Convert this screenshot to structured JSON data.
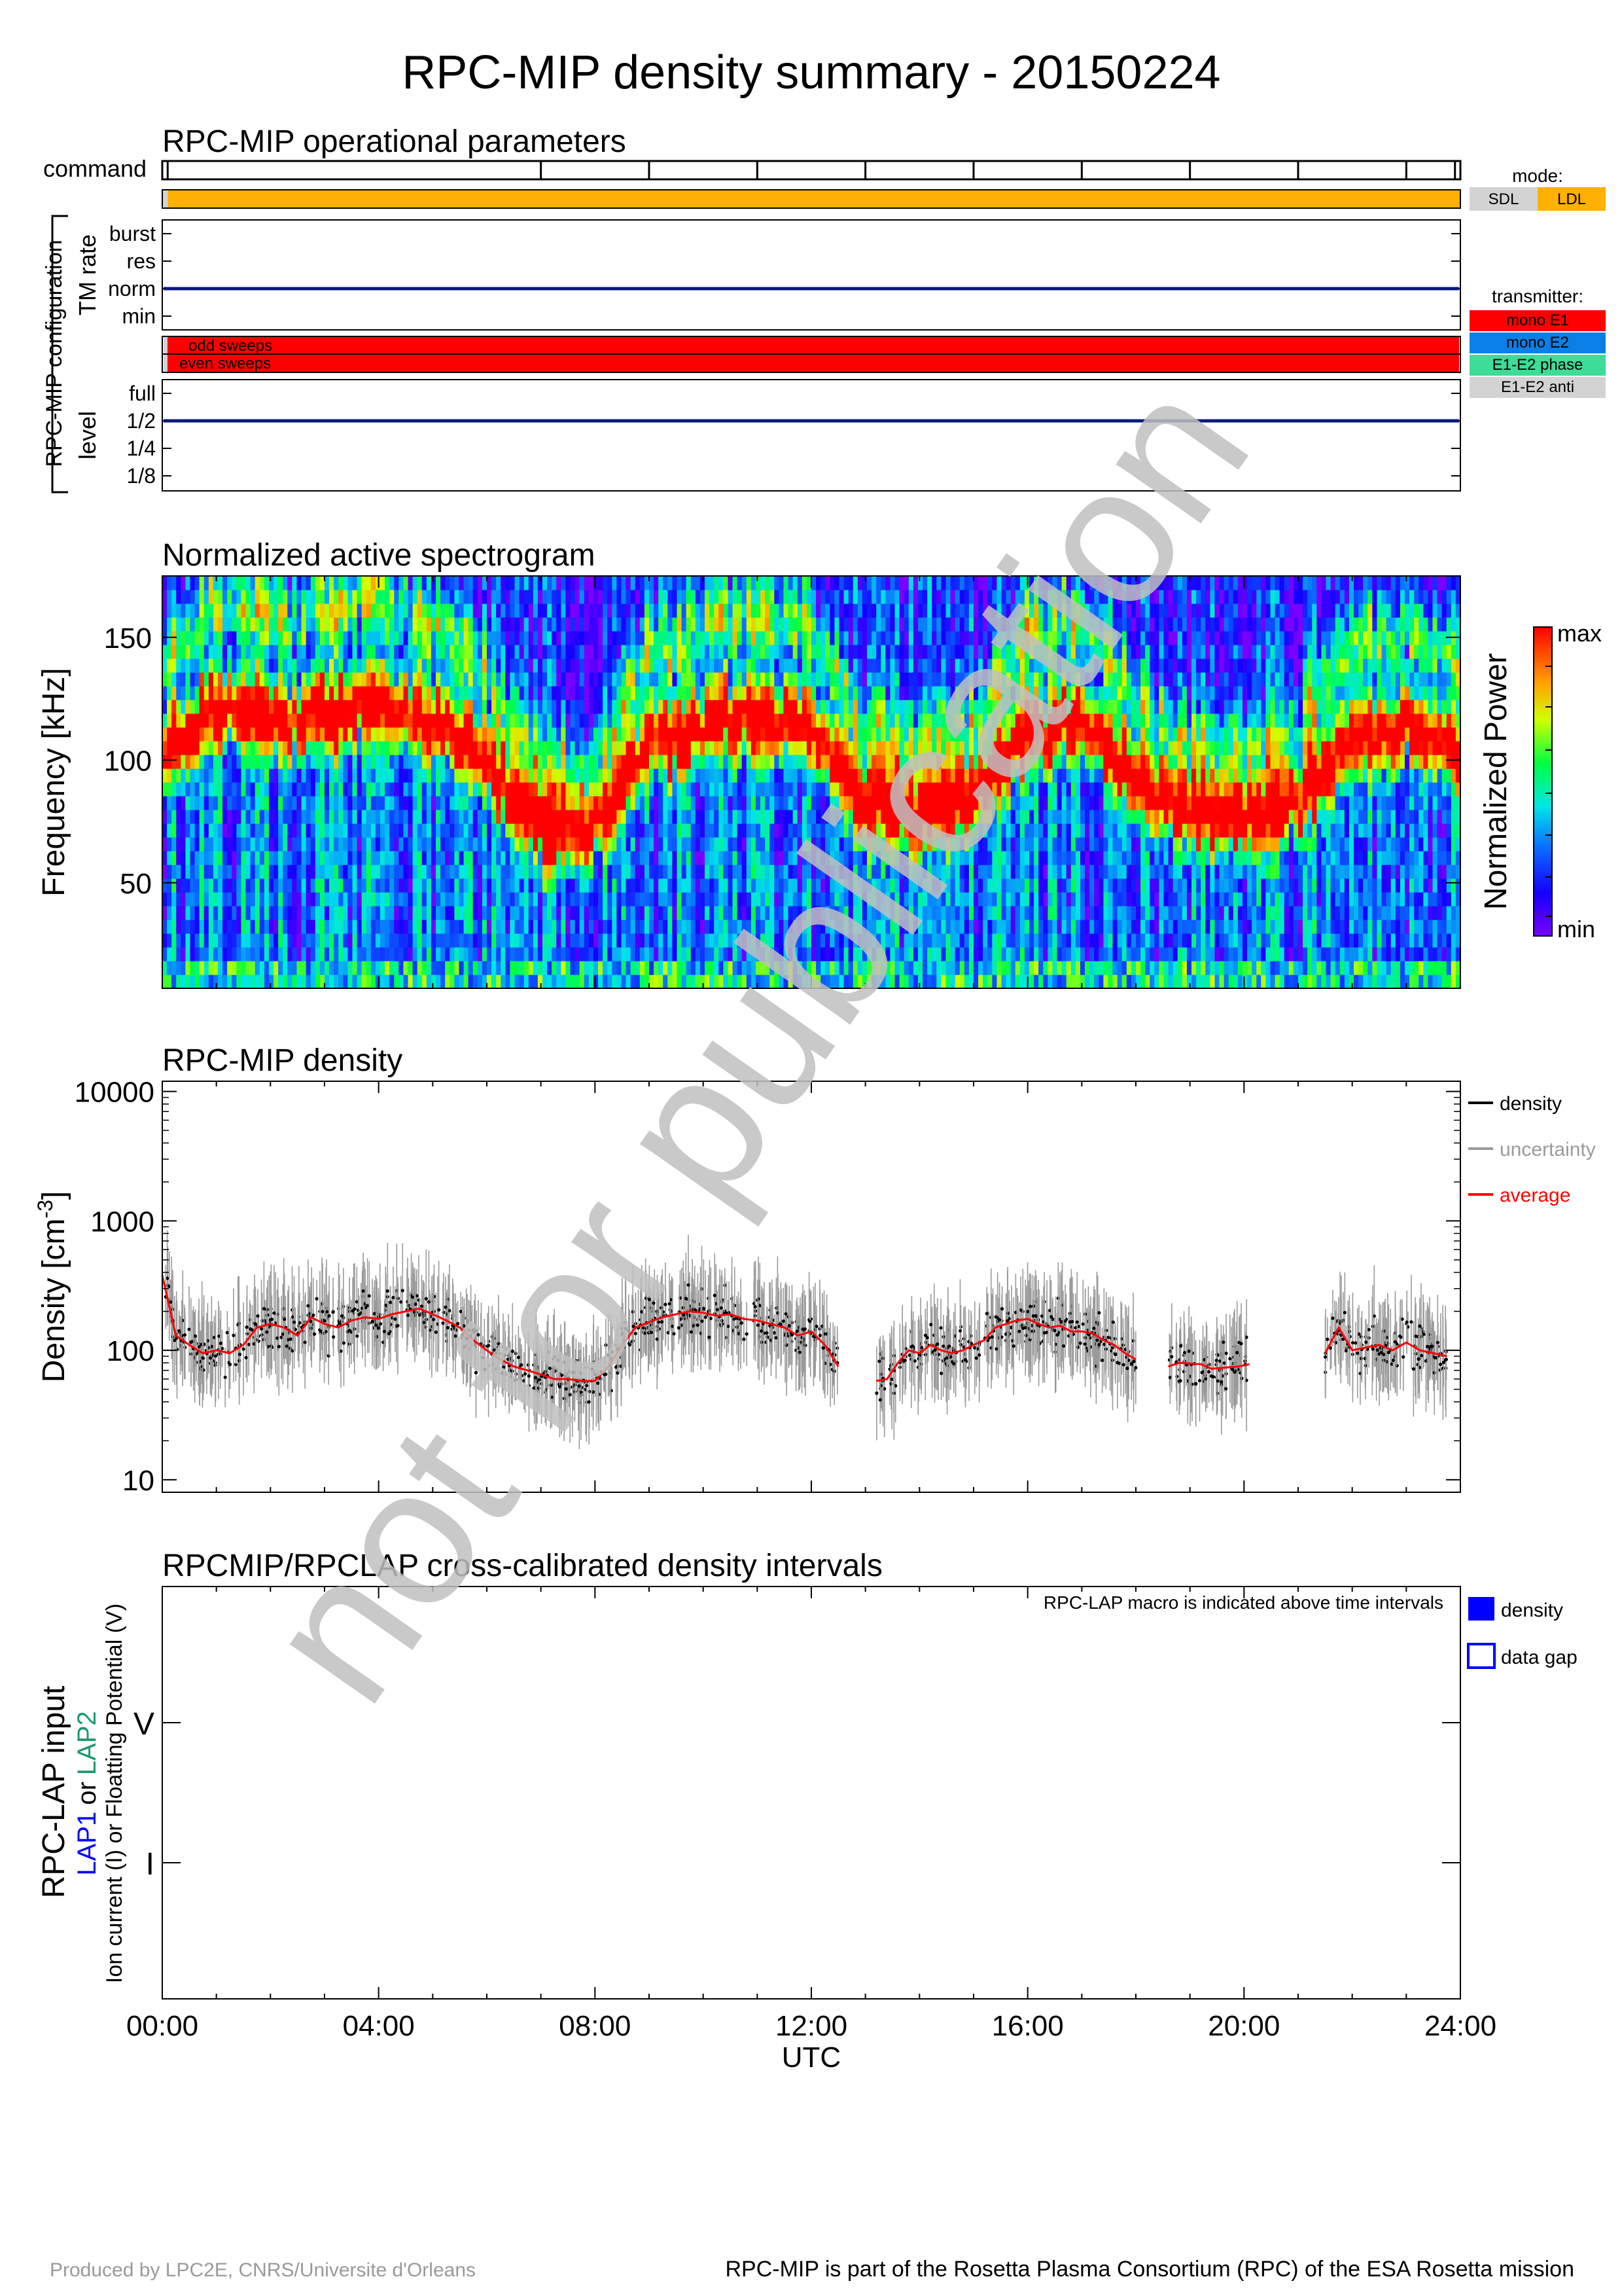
{
  "title": "RPC-MIP density summary - 20150224",
  "watermark": "not for publication",
  "footer": {
    "left": "Produced by LPC2E, CNRS/Universite d'Orleans",
    "right": "RPC-MIP is part of the Rosetta Plasma Consortium (RPC) of the ESA Rosetta mission"
  },
  "chart_data": [
    {
      "type": "timeline",
      "title": "RPC-MIP operational parameters",
      "command_label": "command",
      "command_ticks_hours": [
        0,
        0.1,
        7,
        9,
        11,
        13,
        15,
        17,
        19,
        21,
        23,
        23.9
      ],
      "group_label": "RPC-MIP configuration",
      "mode_legend": {
        "title": "mode:",
        "items": [
          {
            "name": "SDL",
            "color": "#d3d3d3"
          },
          {
            "name": "LDL",
            "color": "#ffb000"
          }
        ]
      },
      "mode_segments": [
        {
          "start": 0,
          "end": 0.1,
          "mode": "SDL"
        },
        {
          "start": 0.1,
          "end": 24,
          "mode": "LDL"
        }
      ],
      "tm_rate": {
        "ylabel": "TM rate",
        "levels": [
          "burst",
          "res",
          "norm",
          "min"
        ],
        "value": "norm"
      },
      "sweeps": {
        "labels": [
          "odd sweeps",
          "even sweeps"
        ],
        "transmitter": "mono E1"
      },
      "transmitter_legend": {
        "title": "transmitter:",
        "items": [
          {
            "name": "mono E1",
            "color": "#ff0000"
          },
          {
            "name": "mono E2",
            "color": "#0a7fe6"
          },
          {
            "name": "E1-E2 phase",
            "color": "#3ddc97"
          },
          {
            "name": "E1-E2 anti",
            "color": "#d3d3d3"
          }
        ]
      },
      "level": {
        "ylabel": "level",
        "levels": [
          "full",
          "1/2",
          "1/4",
          "1/8"
        ],
        "value": "1/2"
      }
    },
    {
      "type": "heatmap",
      "title": "Normalized active spectrogram",
      "ylabel": "Frequency [kHz]",
      "ylim": [
        7,
        175
      ],
      "yticks": [
        50,
        100,
        150
      ],
      "xlim": [
        0,
        24
      ],
      "colorbar": {
        "label": "Normalized Power",
        "max_label": "max",
        "min_label": "min"
      },
      "peak_frequency_profile": {
        "hours": [
          0,
          1,
          2,
          3,
          4,
          5,
          6,
          7,
          8,
          9,
          10,
          11,
          12,
          13,
          14,
          15,
          16,
          17,
          18,
          19,
          20,
          21,
          22,
          23,
          24
        ],
        "khz": [
          100,
          122,
          118,
          120,
          122,
          115,
          98,
          72,
          70,
          108,
          115,
          118,
          112,
          80,
          78,
          85,
          112,
          115,
          92,
          78,
          76,
          82,
          110,
          112,
          100
        ]
      }
    },
    {
      "type": "line",
      "title": "RPC-MIP density",
      "ylabel": "Density [cm",
      "ylabel_sup": "-3",
      "ylabel_end": "]",
      "yscale": "log",
      "ylim": [
        8,
        12000
      ],
      "yticks": [
        10,
        100,
        1000,
        10000
      ],
      "ytick_labels": [
        "10",
        "100",
        "1000",
        "10000"
      ],
      "xlim": [
        0,
        24
      ],
      "legend": [
        {
          "name": "density",
          "color": "#000000"
        },
        {
          "name": "uncertainty",
          "color": "#9a9a9a"
        },
        {
          "name": "average",
          "color": "#ff0000"
        }
      ],
      "series": [
        {
          "name": "average",
          "x": [
            0.0,
            0.25,
            0.5,
            0.75,
            1.0,
            1.25,
            1.5,
            1.75,
            2.0,
            2.25,
            2.5,
            2.75,
            3.0,
            3.25,
            3.5,
            3.75,
            4.0,
            4.25,
            4.5,
            4.75,
            5.0,
            5.25,
            5.5,
            5.75,
            6.0,
            6.25,
            6.5,
            6.75,
            7.0,
            7.25,
            7.5,
            7.75,
            8.0,
            8.25,
            8.5,
            8.75,
            9.0,
            9.25,
            9.5,
            9.75,
            10.0,
            10.25,
            10.5,
            10.75,
            11.0,
            11.25,
            11.5,
            11.75,
            12.0,
            12.25,
            12.5
          ],
          "y": [
            380,
            130,
            110,
            95,
            100,
            95,
            110,
            150,
            160,
            150,
            130,
            180,
            160,
            150,
            170,
            180,
            175,
            190,
            200,
            210,
            190,
            170,
            150,
            120,
            100,
            85,
            75,
            70,
            65,
            60,
            60,
            58,
            58,
            75,
            110,
            150,
            165,
            180,
            190,
            200,
            195,
            185,
            190,
            175,
            170,
            160,
            150,
            130,
            140,
            110,
            75
          ]
        },
        {
          "name": "average",
          "x": [
            13.2,
            13.4,
            13.6,
            13.8,
            14.0,
            14.2,
            14.4,
            14.6,
            14.8,
            15.0,
            15.2,
            15.4,
            15.6,
            15.8,
            16.0,
            16.2,
            16.4,
            16.6,
            16.8,
            17.0,
            17.2,
            17.4,
            17.6,
            17.8,
            18.0
          ],
          "y": [
            58,
            60,
            80,
            100,
            95,
            110,
            100,
            95,
            100,
            110,
            120,
            150,
            160,
            170,
            175,
            160,
            150,
            155,
            140,
            140,
            135,
            120,
            110,
            95,
            85
          ]
        },
        {
          "name": "average",
          "x": [
            18.6,
            18.8,
            19.2,
            19.4,
            19.9,
            20.1
          ],
          "y": [
            75,
            80,
            78,
            72,
            75,
            78
          ]
        },
        {
          "name": "average",
          "x": [
            21.5,
            21.75,
            22.0,
            22.25,
            22.5,
            22.75,
            23.0,
            23.25,
            23.5,
            23.75
          ],
          "y": [
            95,
            150,
            100,
            105,
            110,
            100,
            115,
            100,
            95,
            90
          ]
        }
      ]
    },
    {
      "type": "timeline",
      "title": "RPCMIP/RPCLAP cross-calibrated density intervals",
      "note": "RPC-LAP macro is indicated above time intervals",
      "ylabel_main": "RPC-LAP input",
      "ylabel_lap1": "LAP1",
      "ylabel_or": "or",
      "ylabel_lap2": "LAP2",
      "ylabel_sub": "Ion current (I) or Floatting Potential (V)",
      "yticks": [
        "V",
        "I"
      ],
      "legend": [
        {
          "name": "density",
          "color": "#0000ff",
          "filled": true
        },
        {
          "name": "data gap",
          "color": "#0000ff",
          "filled": false
        }
      ],
      "intervals": [],
      "xticks": [
        "00:00",
        "04:00",
        "08:00",
        "12:00",
        "16:00",
        "20:00",
        "24:00"
      ],
      "xlabel": "UTC"
    }
  ]
}
